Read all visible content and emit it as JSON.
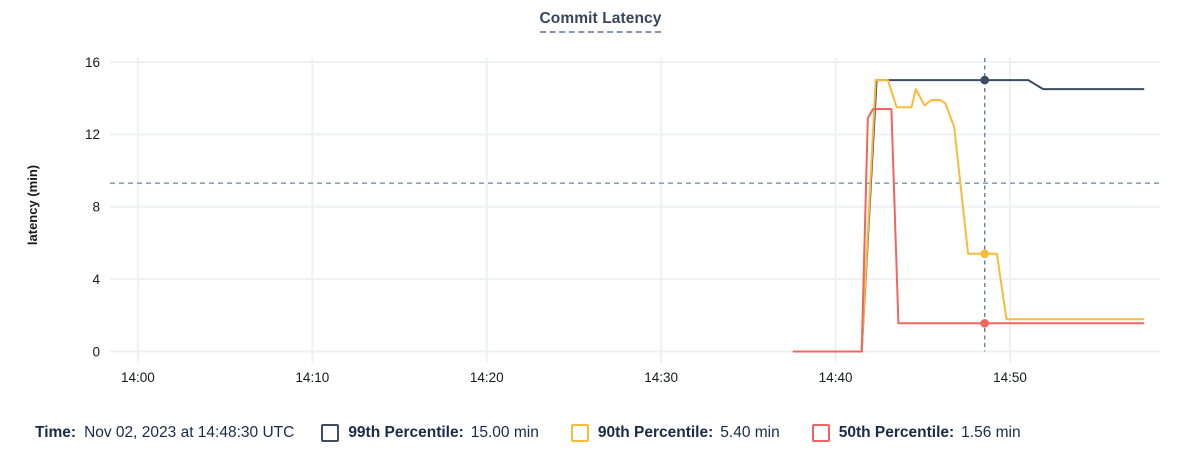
{
  "title": "Commit Latency",
  "chart_data": {
    "type": "line",
    "title": "Commit Latency",
    "xlabel": "",
    "ylabel": "latency (min)",
    "ylim": [
      0,
      16
    ],
    "y_ticks": [
      0,
      4,
      8,
      12,
      16
    ],
    "x_ticks": [
      {
        "minute": 0,
        "label": "14:00"
      },
      {
        "minute": 10,
        "label": "14:10"
      },
      {
        "minute": 20,
        "label": "14:20"
      },
      {
        "minute": 30,
        "label": "14:30"
      },
      {
        "minute": 40,
        "label": "14:40"
      },
      {
        "minute": 50,
        "label": "14:50"
      }
    ],
    "x_range_minutes_from_1400": [
      -1.6,
      58.6
    ],
    "grid": true,
    "legend_position": "bottom",
    "threshold_line": {
      "value": 9.3,
      "style": "dashed",
      "color": "#8ba4ab"
    },
    "cursor": {
      "minute": 48.55,
      "time_label": "14:48:30",
      "color": "#5c7b94"
    },
    "series": [
      {
        "name": "99th Percentile",
        "color": "#3d4c63",
        "marker_value": 15.0,
        "points_min_val": [
          [
            37.6,
            0
          ],
          [
            41.5,
            0
          ],
          [
            42.35,
            15
          ],
          [
            51.05,
            15
          ],
          [
            51.9,
            14.5
          ],
          [
            57.65,
            14.5
          ]
        ]
      },
      {
        "name": "90th Percentile",
        "color": "#fbba3a",
        "marker_value": 5.4,
        "points_min_val": [
          [
            37.6,
            0
          ],
          [
            41.5,
            0
          ],
          [
            42.3,
            15
          ],
          [
            43.0,
            15
          ],
          [
            43.5,
            13.5
          ],
          [
            44.35,
            13.5
          ],
          [
            44.6,
            14.5
          ],
          [
            45.1,
            13.6
          ],
          [
            45.5,
            13.9
          ],
          [
            46.0,
            13.9
          ],
          [
            46.3,
            13.7
          ],
          [
            46.8,
            12.4
          ],
          [
            47.6,
            5.4
          ],
          [
            49.25,
            5.4
          ],
          [
            49.8,
            1.78
          ],
          [
            57.65,
            1.78
          ]
        ]
      },
      {
        "name": "50th Percentile",
        "color": "#f2655e",
        "marker_value": 1.56,
        "points_min_val": [
          [
            37.6,
            0
          ],
          [
            41.5,
            0
          ],
          [
            41.85,
            12.9
          ],
          [
            42.15,
            13.4
          ],
          [
            43.2,
            13.4
          ],
          [
            43.6,
            1.56
          ],
          [
            57.65,
            1.56
          ]
        ]
      }
    ]
  },
  "footer": {
    "time_label": "Time:",
    "time_value": "Nov 02, 2023 at 14:48:30 UTC",
    "legend": [
      {
        "label": "99th Percentile:",
        "value": "15.00 min",
        "color": "#3d4c63"
      },
      {
        "label": "90th Percentile:",
        "value": "5.40 min",
        "color": "#fbba3a"
      },
      {
        "label": "50th Percentile:",
        "value": "1.56 min",
        "color": "#f2655e"
      }
    ]
  },
  "colors": {
    "grid": "#eef0f3",
    "tick_text": "#16191f",
    "title_text": "#35465e",
    "footer_text": "#1a2b49",
    "background": "#ffffff"
  }
}
